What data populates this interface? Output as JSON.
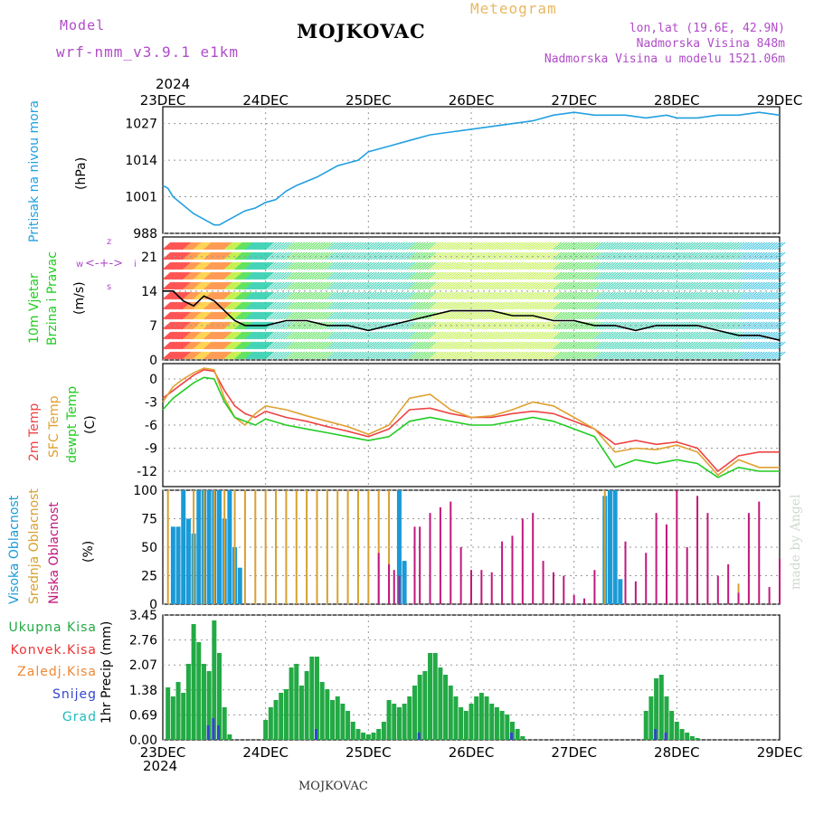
{
  "header": {
    "model_label": "Model",
    "model_name": "wrf-nmm_v3.9.1 e1km",
    "station": "MOJKOVAC",
    "product": "Meteogram",
    "coords": "lon,lat (19.6E, 42.9N)",
    "elevation": "Nadmorska Visina 848m",
    "model_elevation": "Nadmorska Visina u modelu 1521.06m",
    "footer_station": "MOJKOVAC",
    "watermark": "made by Angel",
    "year_top": "2024",
    "year_bottom": "2024",
    "date_ticks": [
      "23DEC",
      "24DEC",
      "25DEC",
      "26DEC",
      "27DEC",
      "28DEC",
      "29DEC"
    ]
  },
  "panels": {
    "pressure": {
      "label1": "Pritisak na nivou mora",
      "unit": "(hPa)"
    },
    "wind": {
      "label1": "10m Vjetar",
      "label2": "Brzina i Pravac",
      "unit": "(m/s)",
      "compass": {
        "w": "w",
        "s": "s",
        "i": "i",
        "z": "z"
      }
    },
    "temp": {
      "label1": "2m Temp",
      "label2": "SFC Temp",
      "label3": "dewpt Temp",
      "unit": "(C)"
    },
    "cloud": {
      "label1": "Visoka Oblacnost",
      "label2": "Srednja Oblacnost",
      "label3": "Niska Oblacnost",
      "unit": "(%)"
    },
    "precip": {
      "legend": [
        "Ukupna Kisa",
        "Konvek.Kisa",
        "Zaledj.Kisa",
        "Snijeg",
        "Grad"
      ],
      "unit": "1hr Precip (mm)"
    }
  },
  "colors": {
    "pressure": "#22a0e0",
    "t2m": "#ee4444",
    "tsfc": "#e0a030",
    "tdew": "#22cc22",
    "cloud_high": "#1a9ad6",
    "cloud_mid": "#d8a030",
    "cloud_low": "#c0187c",
    "precip_total": "#22aa44",
    "precip_conv": "#ee3333",
    "precip_frozen": "#ee8833",
    "precip_snow": "#3344cc",
    "precip_hail": "#22bbbb",
    "model": "#b04cc8",
    "product": "#e8b860"
  },
  "chart_data": [
    {
      "type": "line",
      "name": "pressure",
      "x_range": [
        0,
        6
      ],
      "ylim": [
        988,
        1033
      ],
      "yticks": [
        988,
        1001,
        1014,
        1027
      ],
      "x": [
        0,
        0.05,
        0.1,
        0.2,
        0.3,
        0.4,
        0.5,
        0.55,
        0.6,
        0.7,
        0.8,
        0.9,
        1.0,
        1.1,
        1.2,
        1.3,
        1.5,
        1.7,
        1.9,
        2.0,
        2.2,
        2.4,
        2.6,
        2.8,
        3.0,
        3.2,
        3.4,
        3.6,
        3.8,
        4.0,
        4.2,
        4.3,
        4.5,
        4.7,
        4.9,
        5.0,
        5.2,
        5.4,
        5.6,
        5.8,
        6.0
      ],
      "y": [
        1005,
        1004,
        1001,
        998,
        995,
        993,
        991,
        991,
        992,
        994,
        996,
        997,
        999,
        1000,
        1003,
        1005,
        1008,
        1012,
        1014,
        1017,
        1019,
        1021,
        1023,
        1024,
        1025,
        1026,
        1027,
        1028,
        1030,
        1031,
        1030,
        1030,
        1030,
        1029,
        1030,
        1029,
        1029,
        1030,
        1030,
        1031,
        1030
      ]
    },
    {
      "type": "line",
      "name": "wind_speed",
      "x_range": [
        0,
        6
      ],
      "ylim": [
        0,
        25
      ],
      "yticks": [
        0,
        7,
        14,
        21
      ],
      "x": [
        0,
        0.1,
        0.2,
        0.3,
        0.4,
        0.5,
        0.6,
        0.7,
        0.8,
        0.9,
        1.0,
        1.2,
        1.4,
        1.6,
        1.8,
        2.0,
        2.2,
        2.4,
        2.6,
        2.8,
        3.0,
        3.2,
        3.4,
        3.6,
        3.8,
        4.0,
        4.2,
        4.4,
        4.6,
        4.8,
        5.0,
        5.2,
        5.4,
        5.6,
        5.8,
        6.0
      ],
      "y": [
        14,
        14,
        12,
        11,
        13,
        12,
        10,
        8,
        7,
        7,
        7,
        8,
        8,
        7,
        7,
        6,
        7,
        8,
        9,
        10,
        10,
        10,
        9,
        9,
        8,
        8,
        7,
        7,
        6,
        7,
        7,
        7,
        6,
        5,
        5,
        4
      ]
    },
    {
      "type": "line",
      "name": "temperature",
      "x_range": [
        0,
        6
      ],
      "ylim": [
        -14,
        2
      ],
      "yticks": [
        0,
        -3,
        -6,
        -9,
        -12
      ],
      "x": [
        0,
        0.1,
        0.2,
        0.3,
        0.4,
        0.5,
        0.6,
        0.7,
        0.8,
        0.9,
        1.0,
        1.2,
        1.4,
        1.6,
        1.8,
        2.0,
        2.2,
        2.4,
        2.6,
        2.8,
        3.0,
        3.2,
        3.4,
        3.6,
        3.8,
        4.0,
        4.2,
        4.4,
        4.6,
        4.8,
        5.0,
        5.2,
        5.4,
        5.6,
        5.8,
        6.0
      ],
      "series": [
        {
          "name": "2m Temp",
          "values": [
            -2.5,
            -1.5,
            -0.5,
            0.5,
            1.2,
            1.0,
            -1.5,
            -3.5,
            -4.5,
            -5.0,
            -4.2,
            -5.0,
            -5.5,
            -6.2,
            -6.8,
            -7.5,
            -6.5,
            -4.0,
            -3.8,
            -4.5,
            -5.0,
            -5.0,
            -4.5,
            -4.2,
            -4.5,
            -5.5,
            -6.5,
            -8.5,
            -8.0,
            -8.5,
            -8.2,
            -9.0,
            -12.0,
            -10.0,
            -9.5,
            -9.5
          ]
        },
        {
          "name": "SFC Temp",
          "values": [
            -3.0,
            -1.0,
            0.0,
            0.8,
            1.4,
            1.2,
            -2.5,
            -5.0,
            -6.0,
            -4.5,
            -3.5,
            -4.0,
            -4.8,
            -5.5,
            -6.2,
            -7.2,
            -6.0,
            -2.5,
            -2.0,
            -4.0,
            -5.0,
            -4.8,
            -4.0,
            -3.0,
            -3.5,
            -5.0,
            -6.5,
            -9.5,
            -9.0,
            -9.2,
            -8.6,
            -9.5,
            -12.5,
            -10.5,
            -11.5,
            -11.5
          ]
        },
        {
          "name": "dewpt Temp",
          "values": [
            -4.0,
            -2.5,
            -1.5,
            -0.5,
            0.2,
            0.0,
            -3.0,
            -5.0,
            -5.5,
            -6.0,
            -5.2,
            -6.0,
            -6.5,
            -7.0,
            -7.5,
            -8.0,
            -7.5,
            -5.5,
            -5.0,
            -5.5,
            -6.0,
            -6.0,
            -5.5,
            -5.0,
            -5.5,
            -6.5,
            -7.5,
            -11.5,
            -10.5,
            -11.0,
            -10.5,
            -11.0,
            -12.8,
            -11.5,
            -12.0,
            -12.0
          ]
        }
      ]
    },
    {
      "type": "bar",
      "name": "cloud_cover",
      "x_range": [
        0,
        6
      ],
      "ylim": [
        0,
        100
      ],
      "yticks": [
        0,
        25,
        50,
        75,
        100
      ],
      "series": [
        {
          "name": "Visoka Oblacnost",
          "x": [
            0.1,
            0.15,
            0.2,
            0.25,
            0.3,
            0.35,
            0.4,
            0.45,
            0.5,
            0.55,
            0.6,
            0.65,
            0.7,
            0.75,
            2.3,
            2.35,
            4.3,
            4.35,
            4.4,
            4.45
          ],
          "values": [
            68,
            68,
            100,
            75,
            62,
            100,
            100,
            100,
            100,
            100,
            75,
            100,
            50,
            32,
            100,
            38,
            95,
            100,
            100,
            22
          ]
        },
        {
          "name": "Srednja Oblacnost",
          "x": [
            0.05,
            0.3,
            0.4,
            0.5,
            0.6,
            0.7,
            0.8,
            0.9,
            1.0,
            1.1,
            1.2,
            1.3,
            1.4,
            1.5,
            1.6,
            1.7,
            1.8,
            1.9,
            2.0,
            2.1,
            2.2,
            4.3,
            5.6
          ],
          "values": [
            100,
            100,
            100,
            100,
            100,
            100,
            100,
            100,
            100,
            100,
            100,
            100,
            100,
            100,
            100,
            100,
            100,
            100,
            100,
            100,
            100,
            100,
            18
          ]
        },
        {
          "name": "Niska Oblacnost",
          "x": [
            2.1,
            2.2,
            2.25,
            2.3,
            2.45,
            2.5,
            2.6,
            2.7,
            2.8,
            2.9,
            3.0,
            3.1,
            3.2,
            3.3,
            3.4,
            3.5,
            3.6,
            3.7,
            3.8,
            3.9,
            4.0,
            4.1,
            4.2,
            4.5,
            4.6,
            4.7,
            4.8,
            4.9,
            5.0,
            5.1,
            5.2,
            5.3,
            5.4,
            5.5,
            5.6,
            5.7,
            5.8,
            5.9,
            6.0
          ],
          "values": [
            45,
            35,
            30,
            25,
            68,
            68,
            80,
            85,
            90,
            50,
            30,
            30,
            28,
            55,
            60,
            75,
            80,
            38,
            28,
            25,
            8,
            5,
            30,
            55,
            20,
            45,
            80,
            70,
            100,
            50,
            95,
            80,
            25,
            35,
            10,
            80,
            90,
            15,
            40
          ]
        }
      ]
    },
    {
      "type": "bar",
      "name": "precipitation",
      "x_range": [
        0,
        6
      ],
      "ylim": [
        0,
        3.45
      ],
      "yticks": [
        0,
        0.69,
        1.38,
        2.07,
        2.76,
        3.45
      ],
      "series": [
        {
          "name": "Ukupna Kisa",
          "x": [
            0.05,
            0.1,
            0.15,
            0.2,
            0.25,
            0.3,
            0.35,
            0.4,
            0.45,
            0.5,
            0.55,
            0.6,
            0.65,
            0.7,
            1.0,
            1.05,
            1.1,
            1.15,
            1.2,
            1.25,
            1.3,
            1.35,
            1.4,
            1.45,
            1.5,
            1.55,
            1.6,
            1.65,
            1.7,
            1.75,
            1.8,
            1.85,
            1.9,
            1.95,
            2.0,
            2.05,
            2.1,
            2.15,
            2.2,
            2.25,
            2.3,
            2.35,
            2.4,
            2.45,
            2.5,
            2.55,
            2.6,
            2.65,
            2.7,
            2.75,
            2.8,
            2.85,
            2.9,
            2.95,
            3.0,
            3.05,
            3.1,
            3.15,
            3.2,
            3.25,
            3.3,
            3.35,
            3.4,
            3.45,
            3.5,
            3.55,
            3.6,
            3.65,
            3.7,
            4.7,
            4.75,
            4.8,
            4.85,
            4.9,
            4.95,
            5.0,
            5.05,
            5.1,
            5.15,
            5.2
          ],
          "values": [
            1.45,
            1.2,
            1.6,
            1.3,
            2.1,
            3.2,
            2.7,
            2.1,
            1.9,
            3.3,
            2.4,
            0.9,
            0.15,
            0,
            0.55,
            0.9,
            1.1,
            1.3,
            1.4,
            2.0,
            2.1,
            1.5,
            1.9,
            2.3,
            2.3,
            1.6,
            1.4,
            1.1,
            1.2,
            1.0,
            0.8,
            0.5,
            0.3,
            0.2,
            0.15,
            0.2,
            0.3,
            0.5,
            1.1,
            1.0,
            0.9,
            1.0,
            1.2,
            1.5,
            1.8,
            1.9,
            2.4,
            2.4,
            2.0,
            1.8,
            1.5,
            1.2,
            0.9,
            0.8,
            1.0,
            1.2,
            1.3,
            1.2,
            1.0,
            0.9,
            0.8,
            0.7,
            0.5,
            0.3,
            0.1,
            0,
            0,
            0,
            0,
            0.8,
            1.2,
            1.7,
            1.8,
            1.2,
            0.8,
            0.5,
            0.3,
            0.2,
            0.1,
            0.05
          ]
        },
        {
          "name": "Snijeg",
          "x": [
            0.45,
            0.5,
            0.55,
            1.5,
            2.5,
            3.4,
            4.8,
            4.9
          ],
          "values": [
            0.4,
            0.6,
            0.4,
            0.3,
            0.2,
            0.2,
            0.3,
            0.2
          ]
        }
      ]
    }
  ]
}
